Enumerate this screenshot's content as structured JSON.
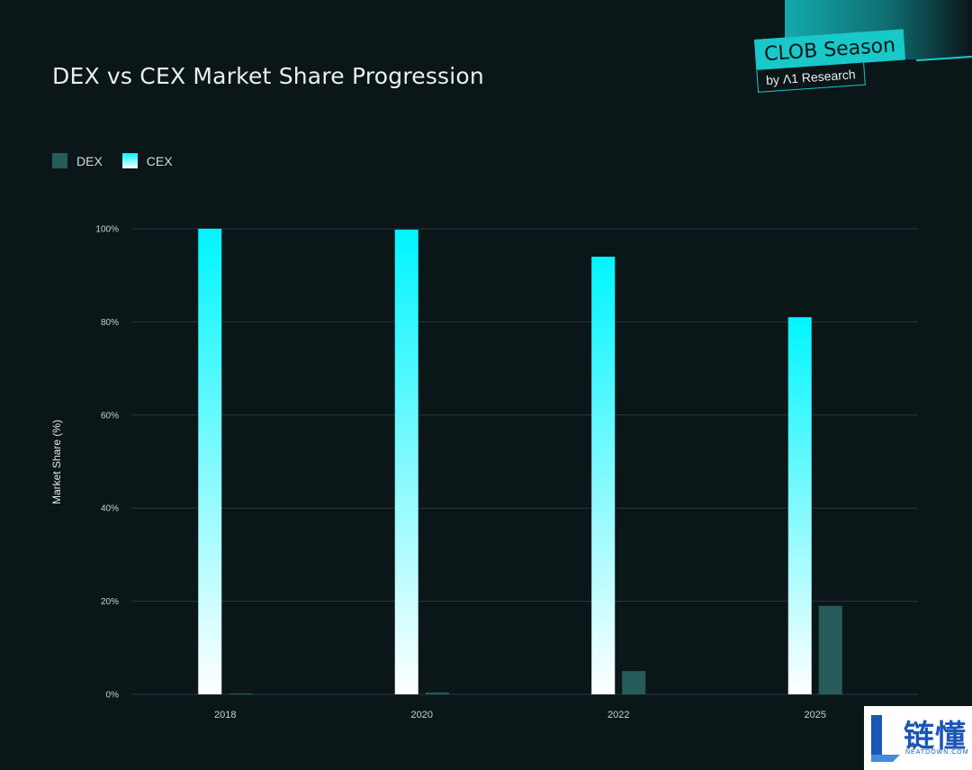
{
  "chart_data": {
    "type": "bar",
    "title": "DEX vs CEX Market Share Progression",
    "categories": [
      "2018",
      "2020",
      "2022",
      "2025"
    ],
    "series": [
      {
        "name": "CEX",
        "values": [
          100,
          99.8,
          94,
          81
        ],
        "color_top": "#00f5ff",
        "color_bottom": "#ffffff"
      },
      {
        "name": "DEX",
        "values": [
          0.2,
          0.4,
          5,
          19
        ],
        "color": "#265b5a"
      }
    ],
    "ylabel": "Market Share (%)",
    "xlabel": "",
    "ylim": [
      0,
      100
    ],
    "yticks": [
      "0%",
      "20%",
      "40%",
      "60%",
      "80%",
      "100%"
    ],
    "ytick_values": [
      0,
      20,
      40,
      60,
      80,
      100
    ],
    "grid": true,
    "legend": "top-left"
  },
  "legend": {
    "dex": "DEX",
    "cex": "CEX"
  },
  "brand": {
    "main": "CLOB Season",
    "sub": "by Λ1 Research"
  },
  "watermark": {
    "cn": "链懂",
    "en": "NEATDOWN.COM"
  },
  "colors": {
    "background": "#0b1619",
    "grid": "#2a3639",
    "accent": "#19c8c8"
  }
}
